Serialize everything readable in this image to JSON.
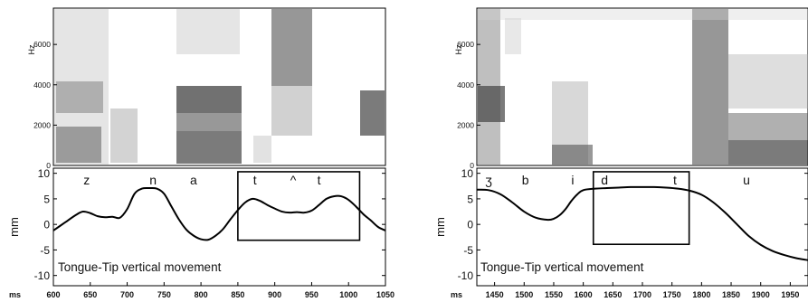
{
  "chart_data": [
    {
      "type": "line",
      "panel": "left",
      "spectrogram": {
        "ylabel": "Hz",
        "yticks": [
          0,
          2000,
          4000,
          6000
        ],
        "ylim": [
          0,
          7800
        ],
        "xlim": [
          600,
          1050
        ]
      },
      "xlabel": "ms",
      "xticks": [
        600,
        650,
        700,
        750,
        800,
        850,
        900,
        950,
        1000,
        1050
      ],
      "ylabel": "mm",
      "yticks": [
        -10,
        -5,
        0,
        5,
        10
      ],
      "ylim": [
        -12,
        11
      ],
      "xlim": [
        600,
        1050
      ],
      "annotation": "Tongue-Tip vertical movement",
      "segments": [
        {
          "label": "z",
          "x": 645
        },
        {
          "label": "n",
          "x": 735
        },
        {
          "label": "a",
          "x": 790
        },
        {
          "label": "t",
          "x": 873
        },
        {
          "label": "^",
          "x": 925
        },
        {
          "label": "t",
          "x": 960
        }
      ],
      "box": {
        "x0": 850,
        "x1": 1015,
        "y0": -3.1,
        "y1": 10.3
      },
      "series": [
        {
          "x": [
            600,
            615,
            630,
            640,
            650,
            660,
            670,
            680,
            690,
            700,
            710,
            720,
            730,
            740,
            750,
            760,
            770,
            780,
            790,
            800,
            810,
            820,
            830,
            840,
            850,
            860,
            870,
            880,
            890,
            900,
            910,
            920,
            930,
            940,
            950,
            960,
            970,
            980,
            990,
            1000,
            1010,
            1020,
            1030,
            1040,
            1050
          ],
          "values": [
            -1.2,
            0.3,
            1.8,
            2.5,
            2.2,
            1.6,
            1.4,
            1.5,
            1.3,
            3.0,
            6.0,
            7.0,
            7.1,
            7.0,
            6.0,
            3.5,
            1.0,
            -1.0,
            -2.2,
            -2.9,
            -3.0,
            -2.2,
            -0.9,
            1.0,
            2.8,
            4.3,
            5.0,
            4.6,
            3.8,
            3.1,
            2.5,
            2.3,
            2.4,
            2.3,
            2.7,
            3.8,
            5.0,
            5.5,
            5.5,
            4.8,
            3.5,
            2.0,
            0.8,
            -0.5,
            -1.2
          ]
        }
      ]
    },
    {
      "type": "line",
      "panel": "right",
      "spectrogram": {
        "ylabel": "Hz",
        "yticks": [
          0,
          2000,
          4000,
          6000
        ],
        "ylim": [
          0,
          7800
        ],
        "xlim": [
          1420,
          1980
        ]
      },
      "xlabel": "ms",
      "xticks": [
        1450,
        1500,
        1550,
        1600,
        1650,
        1700,
        1750,
        1800,
        1850,
        1900,
        1950
      ],
      "ylabel": "mm",
      "yticks": [
        -10,
        -5,
        0,
        5,
        10
      ],
      "ylim": [
        -12,
        11
      ],
      "xlim": [
        1420,
        1980
      ],
      "annotation": "Tongue-Tip vertical movement",
      "segments": [
        {
          "label": "ʒ",
          "x": 1440
        },
        {
          "label": "b",
          "x": 1502
        },
        {
          "label": "i",
          "x": 1582
        },
        {
          "label": "d",
          "x": 1636
        },
        {
          "label": "t",
          "x": 1755
        },
        {
          "label": "u",
          "x": 1876
        }
      ],
      "box": {
        "x0": 1617,
        "x1": 1779,
        "y0": -3.9,
        "y1": 10.3
      },
      "series": [
        {
          "x": [
            1420,
            1440,
            1460,
            1480,
            1500,
            1520,
            1540,
            1550,
            1560,
            1570,
            1580,
            1590,
            1600,
            1620,
            1640,
            1660,
            1680,
            1700,
            1720,
            1740,
            1760,
            1780,
            1800,
            1820,
            1840,
            1860,
            1880,
            1900,
            1920,
            1940,
            1960,
            1980
          ],
          "values": [
            6.8,
            6.7,
            5.9,
            4.3,
            2.5,
            1.3,
            0.9,
            1.1,
            1.8,
            3.0,
            4.6,
            5.9,
            6.7,
            7.0,
            7.1,
            7.2,
            7.3,
            7.3,
            7.3,
            7.2,
            7.0,
            6.6,
            5.8,
            4.3,
            2.3,
            0.0,
            -2.3,
            -4.0,
            -5.2,
            -6.0,
            -6.6,
            -7.0
          ]
        }
      ]
    }
  ]
}
